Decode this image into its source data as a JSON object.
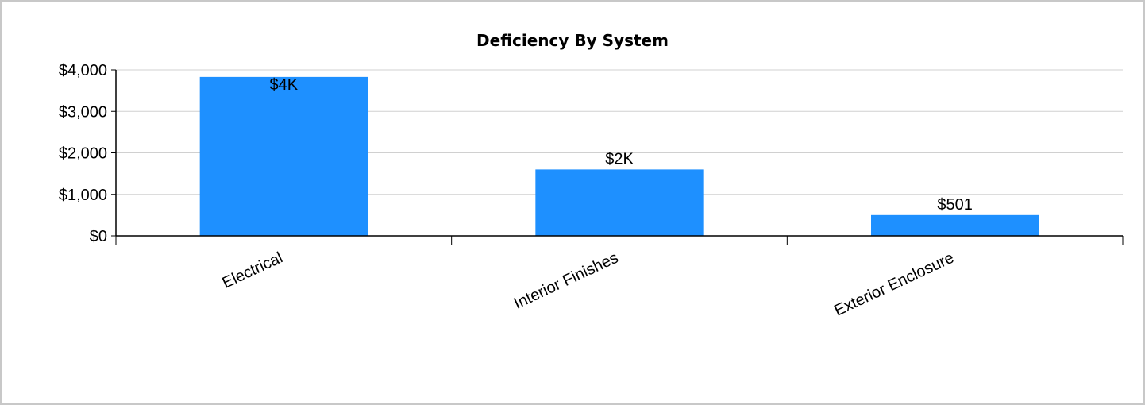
{
  "chart_data": {
    "type": "bar",
    "title": "Deficiency By System",
    "xlabel": "",
    "ylabel": "",
    "categories": [
      "Electrical",
      "Interior Finishes",
      "Exterior Enclosure"
    ],
    "values": [
      3830,
      1600,
      501
    ],
    "data_labels": [
      "$4K",
      "$2K",
      "$501"
    ],
    "ylim": [
      0,
      4000
    ],
    "yticks": [
      0,
      1000,
      2000,
      3000,
      4000
    ],
    "ytick_labels": [
      "$0",
      "$1,000",
      "$2,000",
      "$3,000",
      "$4,000"
    ],
    "grid": true,
    "legend": "none",
    "colors": {
      "bar": "#1e90ff",
      "grid": "#d0d0d0",
      "axis": "#000000",
      "border": "#c8c8c8"
    }
  }
}
